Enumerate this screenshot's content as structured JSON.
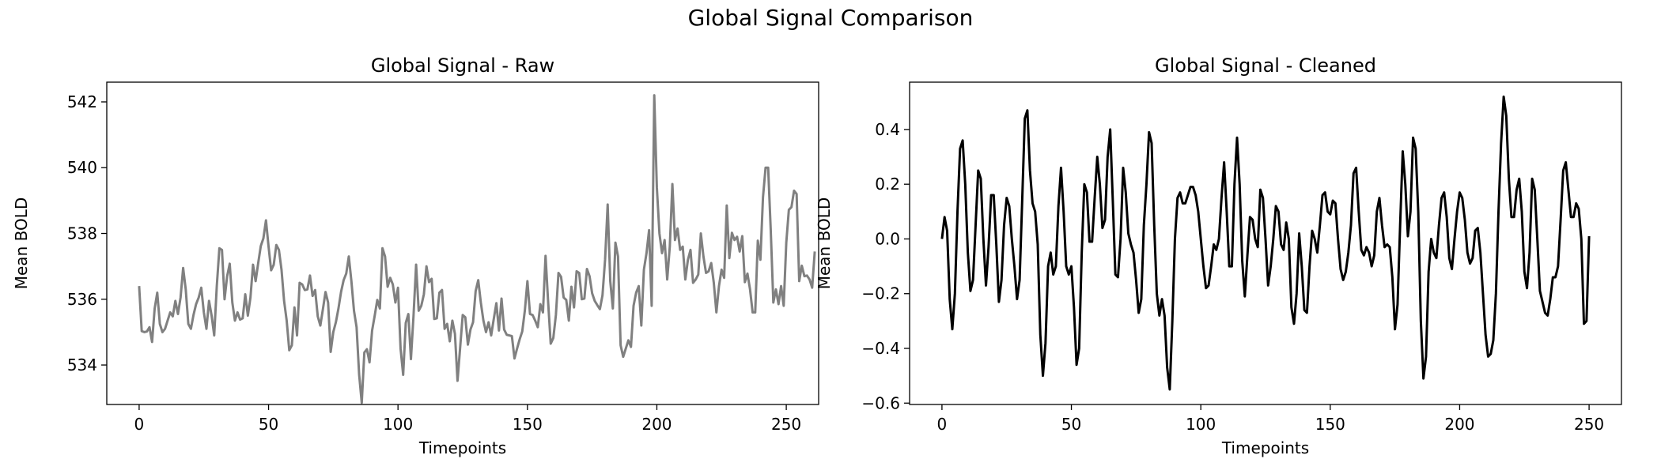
{
  "figure": {
    "suptitle": "Global Signal Comparison"
  },
  "chart_data": [
    {
      "type": "line",
      "title": "Global Signal - Raw",
      "xlabel": "Timepoints",
      "ylabel": "Mean BOLD",
      "xlim": [
        -12.5,
        262.5
      ],
      "ylim": [
        532.8,
        542.6
      ],
      "xticks": [
        0,
        50,
        100,
        150,
        200,
        250
      ],
      "yticks": [
        534,
        536,
        538,
        540,
        542
      ],
      "grid": false,
      "color": "#808080",
      "series": [
        {
          "x_start": 0,
          "x_step": 1,
          "values": [
            536.4,
            535.03,
            535.0,
            535.02,
            535.15,
            534.7,
            535.72,
            536.2,
            535.25,
            535.0,
            535.1,
            535.35,
            535.6,
            535.48,
            535.95,
            535.55,
            536.05,
            536.95,
            536.3,
            535.25,
            535.1,
            535.52,
            535.85,
            536.05,
            536.35,
            535.6,
            535.1,
            535.95,
            535.5,
            534.9,
            536.4,
            537.55,
            537.5,
            536.0,
            536.7,
            537.08,
            535.9,
            535.35,
            535.6,
            535.38,
            535.42,
            536.15,
            535.5,
            536.05,
            537.05,
            536.55,
            537.1,
            537.62,
            537.85,
            538.4,
            537.6,
            536.88,
            537.05,
            537.65,
            537.5,
            536.9,
            535.95,
            535.35,
            534.45,
            534.6,
            535.75,
            534.9,
            536.5,
            536.45,
            536.28,
            536.3,
            536.72,
            536.1,
            536.28,
            535.48,
            535.2,
            535.7,
            536.22,
            535.9,
            534.4,
            535.0,
            535.3,
            535.72,
            536.22,
            536.58,
            536.78,
            537.3,
            536.55,
            535.65,
            535.15,
            533.7,
            532.85,
            534.38,
            534.48,
            534.08,
            535.05,
            535.5,
            535.98,
            535.72,
            537.55,
            537.3,
            536.38,
            536.65,
            536.45,
            535.9,
            536.35,
            534.5,
            533.7,
            535.28,
            535.55,
            534.18,
            535.5,
            537.05,
            535.65,
            535.8,
            536.15,
            537.0,
            536.52,
            536.62,
            535.4,
            535.42,
            536.2,
            536.28,
            535.1,
            535.25,
            534.72,
            535.35,
            534.95,
            533.52,
            534.52,
            535.52,
            535.45,
            534.62,
            535.08,
            535.3,
            536.25,
            536.58,
            535.9,
            535.35,
            535.0,
            535.3,
            534.9,
            535.4,
            535.88,
            535.05,
            536.02,
            535.08,
            534.92,
            534.9,
            534.88,
            534.2,
            534.5,
            534.78,
            535.02,
            535.65,
            536.55,
            535.55,
            535.52,
            535.35,
            535.15,
            535.85,
            535.6,
            537.32,
            535.92,
            534.65,
            534.82,
            535.52,
            536.8,
            536.68,
            536.05,
            535.98,
            535.35,
            536.38,
            535.75,
            536.85,
            536.8,
            536.0,
            536.02,
            536.92,
            536.7,
            536.18,
            535.95,
            535.82,
            535.7,
            536.12,
            537.2,
            538.88,
            536.55,
            535.72,
            537.72,
            537.3,
            534.6,
            534.25,
            534.5,
            534.75,
            534.55,
            535.8,
            536.2,
            536.4,
            535.2,
            536.9,
            537.4,
            538.1,
            535.8,
            542.2,
            539.4,
            538.0,
            537.4,
            537.8,
            536.6,
            537.6,
            539.5,
            537.8,
            538.15,
            537.5,
            537.6,
            536.6,
            537.2,
            537.5,
            536.5,
            536.6,
            536.75,
            538.0,
            537.3,
            536.8,
            536.85,
            537.1,
            536.5,
            535.6,
            536.4,
            536.9,
            536.65,
            538.85,
            537.25,
            538.02,
            537.8,
            537.9,
            537.45,
            537.92,
            536.52,
            536.78,
            536.3,
            535.6,
            535.6,
            537.78,
            537.2,
            539.1,
            540.0,
            540.0,
            538.1,
            535.9,
            536.3,
            535.85,
            536.4,
            535.8,
            537.72,
            538.72,
            538.8,
            539.3,
            539.2,
            536.55,
            537.02,
            536.7,
            536.72,
            536.6,
            536.35,
            537.45
          ]
        }
      ]
    },
    {
      "type": "line",
      "title": "Global Signal - Cleaned",
      "xlabel": "Timepoints",
      "ylabel": "Mean BOLD",
      "xlim": [
        -12.5,
        262.5
      ],
      "ylim": [
        -0.605,
        0.573
      ],
      "xticks": [
        0,
        50,
        100,
        150,
        200,
        250
      ],
      "yticks": [
        -0.6,
        -0.4,
        -0.2,
        0.0,
        0.2,
        0.4
      ],
      "ytick_labels": [
        "−0.6",
        "−0.4",
        "−0.2",
        "0.0",
        "0.2",
        "0.4"
      ],
      "grid": false,
      "color": "#000000",
      "series": [
        {
          "x_start": 0,
          "x_step": 1,
          "values": [
            0.0,
            0.08,
            0.03,
            -0.22,
            -0.33,
            -0.2,
            0.1,
            0.33,
            0.36,
            0.2,
            -0.05,
            -0.19,
            -0.15,
            0.05,
            0.25,
            0.22,
            0.0,
            -0.17,
            -0.03,
            0.16,
            0.16,
            -0.02,
            -0.23,
            -0.15,
            0.05,
            0.15,
            0.12,
            0.0,
            -0.1,
            -0.22,
            -0.15,
            0.14,
            0.44,
            0.47,
            0.25,
            0.13,
            0.1,
            -0.02,
            -0.35,
            -0.5,
            -0.38,
            -0.1,
            -0.05,
            -0.13,
            -0.1,
            0.12,
            0.26,
            0.1,
            -0.1,
            -0.13,
            -0.1,
            -0.25,
            -0.46,
            -0.4,
            -0.05,
            0.2,
            0.17,
            -0.01,
            -0.01,
            0.15,
            0.3,
            0.2,
            0.04,
            0.07,
            0.3,
            0.4,
            0.14,
            -0.13,
            -0.14,
            0.0,
            0.26,
            0.17,
            0.02,
            -0.02,
            -0.05,
            -0.15,
            -0.27,
            -0.22,
            0.05,
            0.2,
            0.39,
            0.35,
            0.05,
            -0.2,
            -0.28,
            -0.22,
            -0.28,
            -0.47,
            -0.55,
            -0.3,
            0.0,
            0.15,
            0.17,
            0.13,
            0.13,
            0.16,
            0.19,
            0.19,
            0.16,
            0.1,
            0.0,
            -0.1,
            -0.18,
            -0.17,
            -0.1,
            -0.02,
            -0.04,
            0.0,
            0.15,
            0.28,
            0.1,
            -0.1,
            -0.1,
            0.2,
            0.37,
            0.2,
            -0.08,
            -0.21,
            -0.06,
            0.08,
            0.07,
            0.0,
            -0.03,
            0.18,
            0.15,
            0.0,
            -0.17,
            -0.1,
            0.0,
            0.12,
            0.1,
            -0.02,
            -0.04,
            0.06,
            0.0,
            -0.25,
            -0.31,
            -0.2,
            0.02,
            -0.1,
            -0.26,
            -0.27,
            -0.1,
            0.03,
            0.0,
            -0.05,
            0.05,
            0.16,
            0.17,
            0.1,
            0.09,
            0.14,
            0.13,
            0.0,
            -0.11,
            -0.15,
            -0.12,
            -0.05,
            0.05,
            0.24,
            0.26,
            0.1,
            -0.04,
            -0.06,
            -0.03,
            -0.05,
            -0.1,
            -0.06,
            0.1,
            0.15,
            0.05,
            -0.03,
            -0.02,
            -0.03,
            -0.14,
            -0.33,
            -0.24,
            0.05,
            0.32,
            0.2,
            0.01,
            0.1,
            0.37,
            0.33,
            0.1,
            -0.3,
            -0.51,
            -0.43,
            -0.12,
            0.0,
            -0.05,
            -0.07,
            0.05,
            0.15,
            0.17,
            0.08,
            -0.07,
            -0.11,
            0.0,
            0.1,
            0.17,
            0.15,
            0.07,
            -0.05,
            -0.09,
            -0.07,
            0.03,
            0.04,
            -0.05,
            -0.2,
            -0.35,
            -0.43,
            -0.42,
            -0.37,
            -0.2,
            0.1,
            0.35,
            0.52,
            0.45,
            0.22,
            0.08,
            0.08,
            0.18,
            0.22,
            0.1,
            -0.12,
            -0.18,
            -0.05,
            0.22,
            0.18,
            0.0,
            -0.19,
            -0.23,
            -0.27,
            -0.28,
            -0.22,
            -0.14,
            -0.14,
            -0.1,
            0.07,
            0.25,
            0.28,
            0.18,
            0.08,
            0.08,
            0.13,
            0.11,
            0.0,
            -0.31,
            -0.3,
            0.01
          ]
        }
      ]
    }
  ]
}
